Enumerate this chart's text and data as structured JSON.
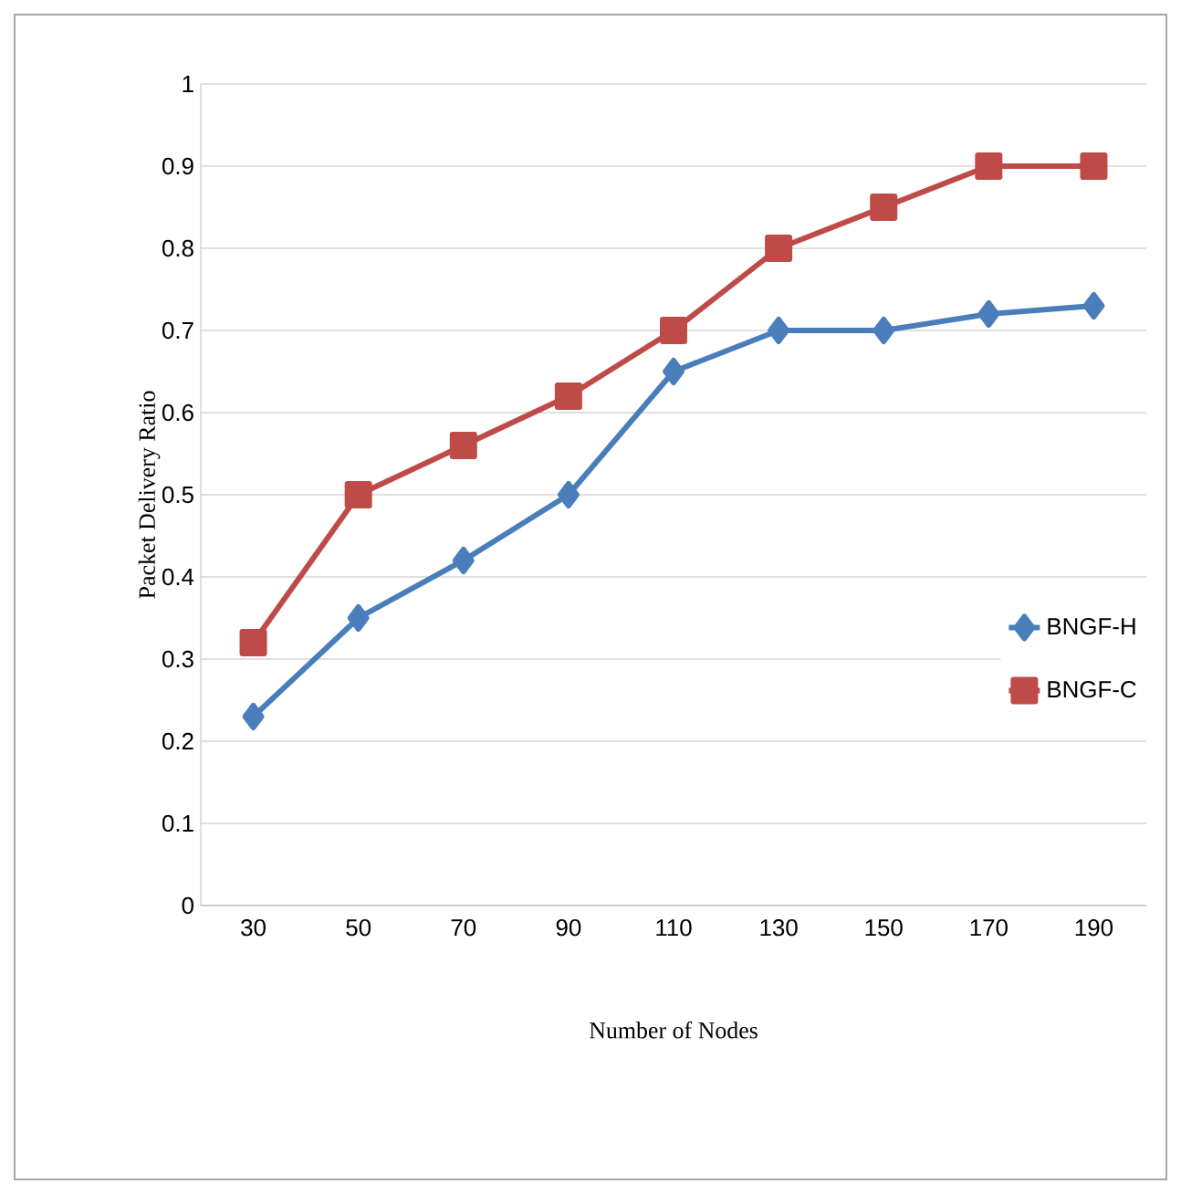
{
  "chart_data": {
    "type": "line",
    "xlabel": "Number of Nodes",
    "ylabel": "Packet Delivery Ratio",
    "categories": [
      "30",
      "50",
      "70",
      "90",
      "110",
      "130",
      "150",
      "170",
      "190"
    ],
    "series": [
      {
        "name": "BNGF-H",
        "color": "#4a7ebb",
        "marker": "diamond",
        "values": [
          0.23,
          0.35,
          0.42,
          0.5,
          0.65,
          0.7,
          0.7,
          0.72,
          0.73
        ]
      },
      {
        "name": "BNGF-C",
        "color": "#be4b48",
        "marker": "square",
        "values": [
          0.32,
          0.5,
          0.56,
          0.62,
          0.7,
          0.8,
          0.85,
          0.9,
          0.9
        ]
      }
    ],
    "ylim": [
      0,
      1
    ],
    "yticks": [
      0,
      0.1,
      0.2,
      0.3,
      0.4,
      0.5,
      0.6,
      0.7,
      0.8,
      0.9,
      1
    ],
    "grid": "y",
    "legend": "right",
    "line_style": "solid"
  }
}
